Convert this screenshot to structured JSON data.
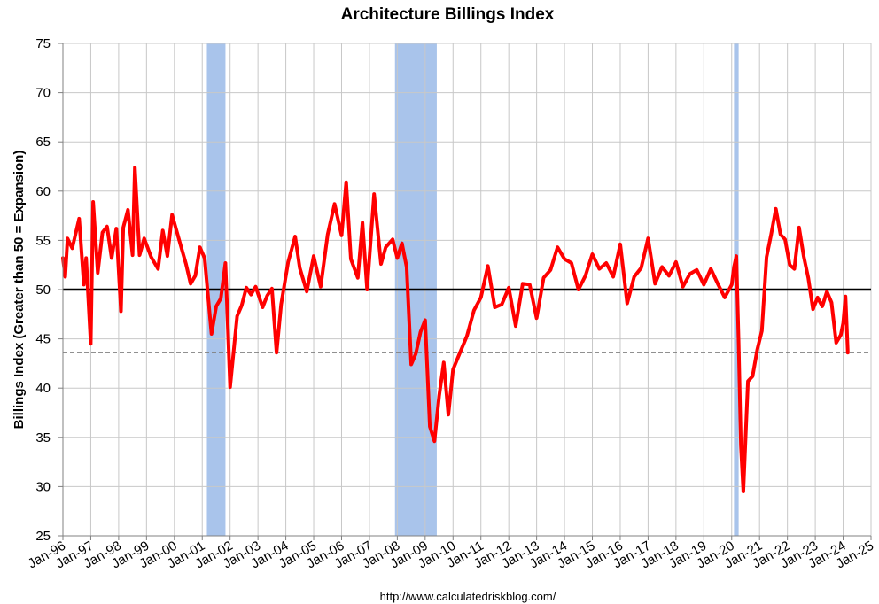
{
  "chart_data": {
    "type": "line",
    "title": "Architecture Billings Index",
    "ylabel": "Billings Index (Greater than 50 = Expansion)",
    "xlabel": "",
    "source": "http://www.calculatedriskblog.com/",
    "ylim": [
      25,
      75
    ],
    "yticks": [
      25,
      30,
      35,
      40,
      45,
      50,
      55,
      60,
      65,
      70,
      75
    ],
    "xlim": [
      "1996-01",
      "2025-01"
    ],
    "xticks": [
      "Jan-96",
      "Jan-97",
      "Jan-98",
      "Jan-99",
      "Jan-00",
      "Jan-01",
      "Jan-02",
      "Jan-03",
      "Jan-04",
      "Jan-05",
      "Jan-06",
      "Jan-07",
      "Jan-08",
      "Jan-09",
      "Jan-10",
      "Jan-11",
      "Jan-12",
      "Jan-13",
      "Jan-14",
      "Jan-15",
      "Jan-16",
      "Jan-17",
      "Jan-18",
      "Jan-19",
      "Jan-20",
      "Jan-21",
      "Jan-22",
      "Jan-23",
      "Jan-24",
      "Jan-25"
    ],
    "grid": true,
    "colors": {
      "series": "#ff0000",
      "recession": "#a9c4eb",
      "grid": "#c8c8c8",
      "reference": "#000000",
      "latest": "#808080"
    },
    "reference_line": {
      "y": 50,
      "style": "solid"
    },
    "latest_value_line": {
      "y": 43.6,
      "style": "dashed"
    },
    "recessions": [
      {
        "start": "2001-03",
        "end": "2001-11"
      },
      {
        "start": "2007-12",
        "end": "2009-06"
      },
      {
        "start": "2020-02",
        "end": "2020-04"
      }
    ],
    "series": [
      {
        "x": [
          "1996-01",
          "1996-02",
          "1996-03",
          "1996-05",
          "1996-08",
          "1996-10",
          "1996-11",
          "1997-01",
          "1997-02",
          "1997-04",
          "1997-06",
          "1997-08",
          "1997-10",
          "1997-12",
          "1998-02",
          "1998-03",
          "1998-05",
          "1998-07",
          "1998-08",
          "1998-10",
          "1998-12",
          "1999-03",
          "1999-06",
          "1999-08",
          "1999-10",
          "1999-12",
          "2000-03",
          "2000-06",
          "2000-08",
          "2000-10",
          "2000-12",
          "2001-02",
          "2001-05",
          "2001-07",
          "2001-09",
          "2001-11",
          "2002-01",
          "2002-04",
          "2002-06",
          "2002-08",
          "2002-10",
          "2002-12",
          "2003-03",
          "2003-05",
          "2003-07",
          "2003-09",
          "2003-11",
          "2004-02",
          "2004-05",
          "2004-07",
          "2004-10",
          "2005-01",
          "2005-04",
          "2005-07",
          "2005-10",
          "2006-01",
          "2006-03",
          "2006-05",
          "2006-08",
          "2006-10",
          "2006-12",
          "2007-03",
          "2007-06",
          "2007-08",
          "2007-11",
          "2008-01",
          "2008-03",
          "2008-05",
          "2008-07",
          "2008-09",
          "2008-11",
          "2009-01",
          "2009-03",
          "2009-05",
          "2009-07",
          "2009-09",
          "2009-11",
          "2010-01",
          "2010-04",
          "2010-07",
          "2010-10",
          "2011-01",
          "2011-04",
          "2011-07",
          "2011-10",
          "2012-01",
          "2012-04",
          "2012-07",
          "2012-10",
          "2013-01",
          "2013-04",
          "2013-07",
          "2013-10",
          "2014-01",
          "2014-04",
          "2014-07",
          "2014-10",
          "2015-01",
          "2015-04",
          "2015-07",
          "2015-10",
          "2016-01",
          "2016-04",
          "2016-07",
          "2016-10",
          "2017-01",
          "2017-04",
          "2017-07",
          "2017-10",
          "2018-01",
          "2018-04",
          "2018-07",
          "2018-10",
          "2019-01",
          "2019-04",
          "2019-07",
          "2019-10",
          "2020-01",
          "2020-02",
          "2020-03",
          "2020-04",
          "2020-05",
          "2020-06",
          "2020-08",
          "2020-10",
          "2020-12",
          "2021-02",
          "2021-04",
          "2021-06",
          "2021-08",
          "2021-10",
          "2021-12",
          "2022-02",
          "2022-04",
          "2022-06",
          "2022-08",
          "2022-10",
          "2022-12",
          "2023-02",
          "2023-04",
          "2023-06",
          "2023-08",
          "2023-10",
          "2023-12",
          "2024-01",
          "2024-02",
          "2024-03"
        ],
        "y": [
          53.2,
          51.3,
          55.2,
          54.2,
          57.2,
          50.5,
          53.2,
          44.5,
          58.9,
          51.7,
          55.8,
          56.4,
          53.2,
          56.2,
          47.8,
          56.3,
          58.1,
          53.5,
          62.4,
          53.5,
          55.2,
          53.3,
          52.1,
          56.0,
          53.4,
          57.6,
          55.1,
          52.6,
          50.6,
          51.4,
          54.3,
          53.2,
          45.5,
          48.3,
          49.1,
          52.7,
          40.1,
          47.3,
          48.4,
          50.2,
          49.5,
          50.3,
          48.2,
          49.4,
          50.1,
          43.6,
          48.5,
          52.8,
          55.4,
          52.2,
          49.8,
          53.4,
          50.3,
          55.6,
          58.7,
          55.5,
          60.9,
          53.1,
          51.2,
          56.8,
          50.0,
          59.7,
          52.6,
          54.3,
          55.1,
          53.2,
          54.7,
          52.3,
          42.4,
          43.5,
          45.7,
          46.9,
          36.1,
          34.6,
          39.2,
          42.6,
          37.3,
          41.9,
          43.6,
          45.3,
          47.9,
          49.2,
          52.4,
          48.2,
          48.5,
          50.2,
          46.3,
          50.6,
          50.5,
          47.1,
          51.2,
          52.0,
          54.3,
          53.1,
          52.7,
          50.0,
          51.4,
          53.6,
          52.1,
          52.7,
          51.3,
          54.6,
          48.6,
          51.3,
          52.2,
          55.2,
          50.6,
          52.3,
          51.4,
          52.8,
          50.3,
          51.6,
          52.0,
          50.5,
          52.1,
          50.6,
          49.2,
          50.5,
          52.3,
          53.4,
          44.6,
          34.1,
          29.5,
          40.7,
          41.2,
          43.9,
          45.8,
          53.3,
          55.6,
          58.2,
          55.6,
          55.1,
          52.5,
          52.1,
          56.3,
          53.4,
          51.2,
          48.0,
          49.2,
          48.3,
          49.8,
          48.7,
          44.6,
          45.4,
          46.6,
          49.3,
          43.6
        ]
      }
    ]
  }
}
